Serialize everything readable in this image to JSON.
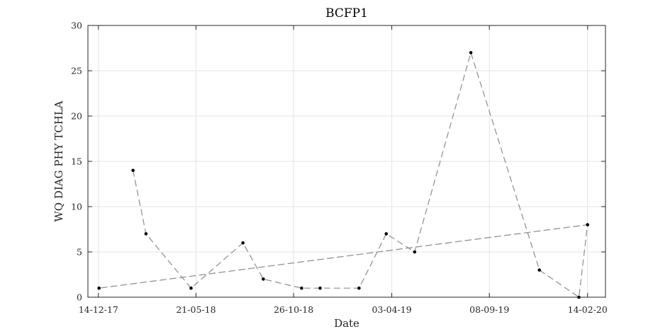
{
  "chart_data": {
    "type": "line",
    "title": "BCFP1",
    "xlabel": "Date",
    "ylabel": "WQ DIAG PHY TCHLA",
    "xlim": [
      "2017-11-27",
      "2020-03-14"
    ],
    "ylim": [
      0,
      30
    ],
    "grid": true,
    "xticks": [
      {
        "date": "2017-12-14",
        "label": "14-12-17"
      },
      {
        "date": "2018-05-21",
        "label": "21-05-18"
      },
      {
        "date": "2018-10-26",
        "label": "26-10-18"
      },
      {
        "date": "2019-04-03",
        "label": "03-04-19"
      },
      {
        "date": "2019-09-08",
        "label": "08-09-19"
      },
      {
        "date": "2020-02-14",
        "label": "14-02-20"
      }
    ],
    "yticks": [
      0,
      5,
      10,
      15,
      20,
      25,
      30
    ],
    "series": [
      {
        "line_style": "dashed",
        "color": "#8c8c8c",
        "marker_color": "#000000",
        "points": [
          {
            "x": "2018-02-08",
            "y": 14
          },
          {
            "x": "2018-03-01",
            "y": 7
          },
          {
            "x": "2018-05-13",
            "y": 1
          },
          {
            "x": "2018-08-05",
            "y": 6
          },
          {
            "x": "2018-09-07",
            "y": 2
          },
          {
            "x": "2018-11-08",
            "y": 1
          },
          {
            "x": "2018-12-08",
            "y": 1
          },
          {
            "x": "2019-02-09",
            "y": 1
          },
          {
            "x": "2019-03-25",
            "y": 7
          },
          {
            "x": "2019-05-10",
            "y": 5
          },
          {
            "x": "2019-08-09",
            "y": 27
          },
          {
            "x": "2019-11-28",
            "y": 3
          },
          {
            "x": "2020-01-31",
            "y": 0
          },
          {
            "x": "2020-02-14",
            "y": 8
          },
          {
            "x": "2017-12-15",
            "y": 1
          },
          {
            "x": "2020-02-14",
            "y": 8
          }
        ]
      }
    ]
  }
}
